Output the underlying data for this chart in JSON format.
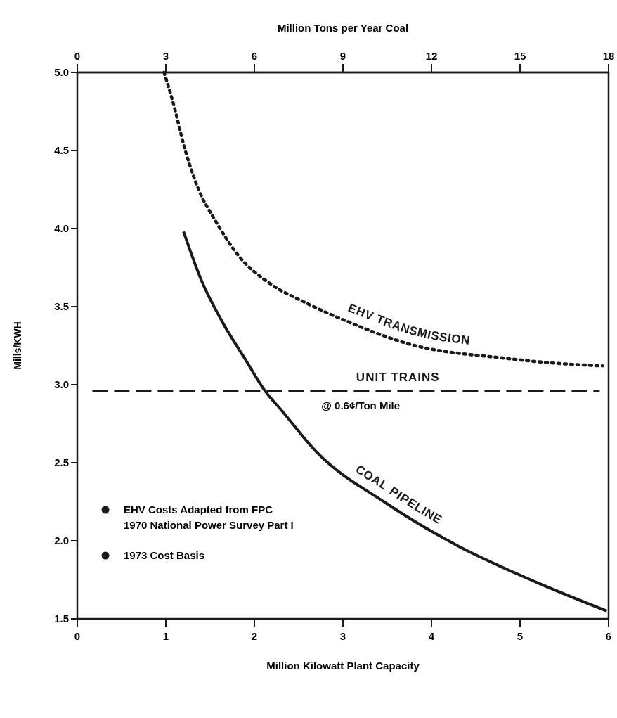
{
  "chart_data": {
    "type": "line",
    "xlabel": "Million Kilowatt Plant Capacity",
    "ylabel": "Mills/KWH",
    "x2label": "Million Tons per Year Coal",
    "xlim": [
      0,
      6
    ],
    "xticks": [
      0,
      1,
      2,
      3,
      4,
      5,
      6
    ],
    "x2lim": [
      0,
      18
    ],
    "x2ticks": [
      0,
      3,
      6,
      9,
      12,
      15,
      18
    ],
    "ylim": [
      1.5,
      5.0
    ],
    "yticks": [
      {
        "value": 1.5,
        "label": "1.5"
      },
      {
        "value": 2.0,
        "label": "2.0"
      },
      {
        "value": 2.5,
        "label": "2.5"
      },
      {
        "value": 3.0,
        "label": "3.0"
      },
      {
        "value": 3.5,
        "label": "3.5"
      },
      {
        "value": 4.0,
        "label": "4.0"
      },
      {
        "value": 4.5,
        "label": "4.5"
      },
      {
        "value": 5.0,
        "label": "5.0"
      }
    ],
    "grid": false,
    "marker": "none",
    "series": [
      {
        "name": "EHV TRANSMISSION",
        "color": "#1a1a1a",
        "line_style": "dotted",
        "x": [
          0.98,
          1.09,
          1.21,
          1.37,
          1.56,
          1.83,
          2.17,
          2.56,
          3.07,
          3.75,
          4.82,
          5.34,
          5.93
        ],
        "values": [
          5.0,
          4.79,
          4.52,
          4.25,
          4.05,
          3.82,
          3.65,
          3.53,
          3.4,
          3.26,
          3.17,
          3.14,
          3.12
        ]
      },
      {
        "name": "UNIT TRAINS",
        "color": "#1a1a1a",
        "line_style": "dashed",
        "x": [
          0.17,
          5.9
        ],
        "values": [
          2.96,
          2.96
        ]
      },
      {
        "name": "COAL PIPELINE",
        "color": "#1a1a1a",
        "line_style": "solid",
        "x": [
          1.2,
          1.4,
          1.64,
          1.9,
          2.12,
          2.3,
          2.7,
          3.49,
          4.29,
          5.08,
          5.98
        ],
        "values": [
          3.98,
          3.67,
          3.4,
          3.16,
          2.96,
          2.84,
          2.57,
          2.24,
          1.97,
          1.76,
          1.55
        ]
      }
    ],
    "annotations": [
      {
        "text": "@ 0.6¢/Ton Mile",
        "x": 3.2,
        "y": 2.96
      },
      "EHV Costs Adapted from FPC\n1970 National Power Survey Part I",
      "1973 Cost Basis"
    ]
  }
}
